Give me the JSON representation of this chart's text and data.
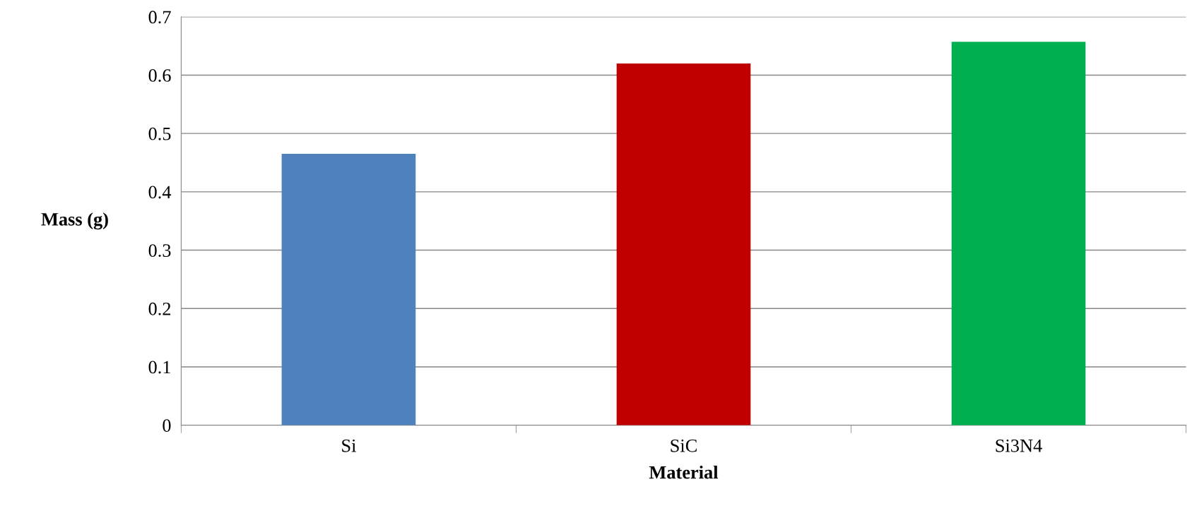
{
  "chart_data": {
    "type": "bar",
    "xlabel": "Material",
    "ylabel": "Mass (g)",
    "categories": [
      "Si",
      "SiC",
      "Si3N4"
    ],
    "values": [
      0.465,
      0.62,
      0.657
    ],
    "colors": [
      "#4f81bd",
      "#c00000",
      "#00b050"
    ],
    "ylim": [
      0,
      0.7
    ],
    "yticks": [
      0,
      0.1,
      0.2,
      0.3,
      0.4,
      0.5,
      0.6,
      0.7
    ],
    "grid": "y"
  }
}
